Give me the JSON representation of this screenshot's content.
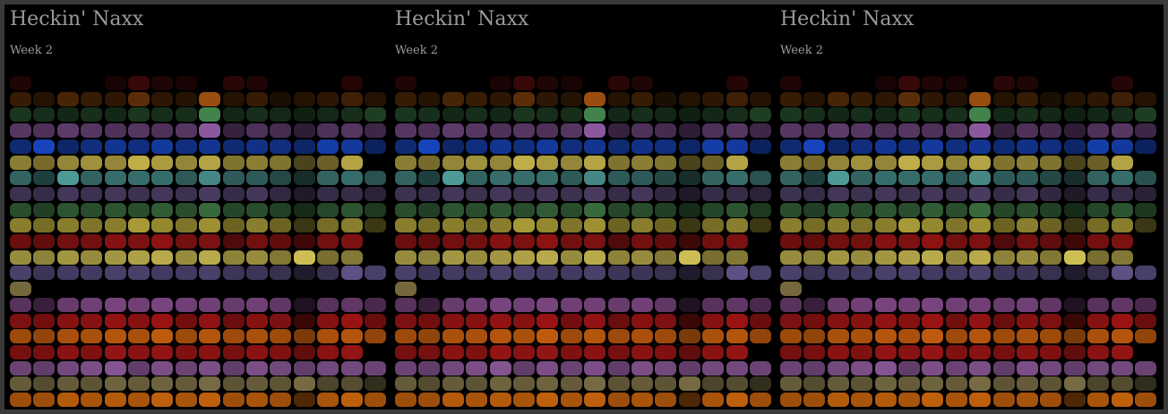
{
  "panels": [
    {
      "title": "Heckin' Naxx",
      "subtitle": "Week 2"
    },
    {
      "title": "Heckin' Naxx",
      "subtitle": "Week 2"
    },
    {
      "title": "Heckin' Naxx",
      "subtitle": "Week 2"
    }
  ],
  "grid": {
    "columns": 16,
    "rows": [
      {
        "color": "#7a1212",
        "levels": [
          0.25,
          0,
          0,
          0,
          0.2,
          0.45,
          0.25,
          0.2,
          0,
          0.35,
          0.25,
          0,
          0,
          0,
          0.3,
          0
        ]
      },
      {
        "color": "#b45a10",
        "levels": [
          0.3,
          0.2,
          0.4,
          0.3,
          0.25,
          0.5,
          0.25,
          0.2,
          0.85,
          0.2,
          0.3,
          0.15,
          0.2,
          0.25,
          0.35,
          0.2
        ]
      },
      {
        "color": "#4c9a58",
        "levels": [
          0.35,
          0.3,
          0.25,
          0.3,
          0.25,
          0.35,
          0.3,
          0.3,
          0.85,
          0.25,
          0.3,
          0.25,
          0.2,
          0.25,
          0.3,
          0.4
        ]
      },
      {
        "color": "#9a62b0",
        "levels": [
          0.55,
          0.5,
          0.6,
          0.55,
          0.5,
          0.55,
          0.5,
          0.55,
          0.9,
          0.35,
          0.5,
          0.45,
          0.3,
          0.5,
          0.55,
          0.4
        ]
      },
      {
        "color": "#1a4cd0",
        "levels": [
          0.55,
          0.9,
          0.5,
          0.6,
          0.7,
          0.6,
          0.75,
          0.6,
          0.7,
          0.55,
          0.65,
          0.6,
          0.5,
          0.8,
          0.75,
          0.45
        ]
      },
      {
        "color": "#d4c050",
        "levels": [
          0.65,
          0.55,
          0.7,
          0.75,
          0.7,
          0.9,
          0.8,
          0.7,
          0.85,
          0.6,
          0.65,
          0.6,
          0.35,
          0.5,
          0.85,
          0
        ]
      },
      {
        "color": "#5ab4b0",
        "levels": [
          0.55,
          0.35,
          0.85,
          0.55,
          0.6,
          0.6,
          0.6,
          0.5,
          0.75,
          0.5,
          0.5,
          0.4,
          0.25,
          0.55,
          0.6,
          0.45
        ]
      },
      {
        "color": "#7a62a0",
        "levels": [
          0.5,
          0.45,
          0.55,
          0.5,
          0.55,
          0.5,
          0.55,
          0.5,
          0.6,
          0.45,
          0.55,
          0.4,
          0.25,
          0.45,
          0.45,
          0.35
        ]
      },
      {
        "color": "#4a8c50",
        "levels": [
          0.55,
          0.45,
          0.6,
          0.55,
          0.6,
          0.55,
          0.65,
          0.55,
          0.75,
          0.5,
          0.55,
          0.45,
          0.3,
          0.5,
          0.6,
          0.4
        ]
      },
      {
        "color": "#c4b440",
        "levels": [
          0.7,
          0.6,
          0.7,
          0.65,
          0.7,
          0.85,
          0.75,
          0.65,
          0.8,
          0.55,
          0.7,
          0.55,
          0.3,
          0.6,
          0.7,
          0.3
        ]
      },
      {
        "color": "#b01818",
        "levels": [
          0.6,
          0.55,
          0.65,
          0.65,
          0.75,
          0.7,
          0.8,
          0.65,
          0.7,
          0.45,
          0.65,
          0.55,
          0.35,
          0.65,
          0.7,
          0
        ]
      },
      {
        "color": "#d8c858",
        "levels": [
          0.7,
          0.65,
          0.75,
          0.7,
          0.75,
          0.8,
          0.85,
          0.7,
          0.85,
          0.65,
          0.7,
          0.6,
          0.95,
          0.55,
          0.6,
          0
        ]
      },
      {
        "color": "#7a6ab0",
        "levels": [
          0.6,
          0.5,
          0.55,
          0.55,
          0.6,
          0.6,
          0.55,
          0.55,
          0.6,
          0.5,
          0.5,
          0.45,
          0.25,
          0.45,
          0.75,
          0.6
        ]
      },
      {
        "color": "#9a8a50",
        "levels": [
          0.75,
          0,
          0,
          0,
          0,
          0,
          0,
          0,
          0,
          0,
          0,
          0,
          0,
          0,
          0,
          0
        ]
      },
      {
        "color": "#a05aa8",
        "levels": [
          0.55,
          0.35,
          0.65,
          0.7,
          0.75,
          0.7,
          0.75,
          0.7,
          0.7,
          0.65,
          0.7,
          0.6,
          0.2,
          0.55,
          0.6,
          0.45
        ]
      },
      {
        "color": "#c01818",
        "levels": [
          0.65,
          0.6,
          0.7,
          0.7,
          0.75,
          0.7,
          0.8,
          0.6,
          0.75,
          0.55,
          0.7,
          0.65,
          0.3,
          0.7,
          0.8,
          0.55
        ]
      },
      {
        "color": "#e06a10",
        "levels": [
          0.7,
          0.65,
          0.75,
          0.75,
          0.8,
          0.75,
          0.85,
          0.7,
          0.8,
          0.7,
          0.75,
          0.7,
          0.55,
          0.75,
          0.8,
          0.65
        ]
      },
      {
        "color": "#c41a1a",
        "levels": [
          0.6,
          0.6,
          0.7,
          0.65,
          0.75,
          0.7,
          0.75,
          0.65,
          0.7,
          0.6,
          0.7,
          0.65,
          0.5,
          0.7,
          0.75,
          0
        ]
      },
      {
        "color": "#b070c0",
        "levels": [
          0.6,
          0.55,
          0.65,
          0.7,
          0.75,
          0.55,
          0.7,
          0.6,
          0.7,
          0.55,
          0.7,
          0.65,
          0.55,
          0.65,
          0.65,
          0.6
        ]
      },
      {
        "color": "#a89860",
        "levels": [
          0.6,
          0.5,
          0.6,
          0.55,
          0.65,
          0.6,
          0.65,
          0.6,
          0.7,
          0.55,
          0.6,
          0.55,
          0.7,
          0.45,
          0.5,
          0.3
        ]
      },
      {
        "color": "#e0700e",
        "levels": [
          0.7,
          0.7,
          0.8,
          0.75,
          0.8,
          0.75,
          0.85,
          0.75,
          0.85,
          0.7,
          0.75,
          0.7,
          0.35,
          0.75,
          0.85,
          0.7
        ]
      }
    ]
  }
}
